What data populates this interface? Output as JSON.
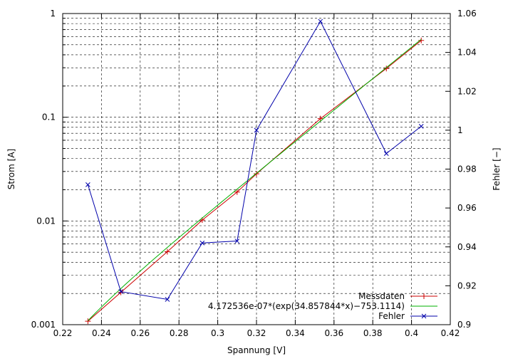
{
  "chart_data": {
    "type": "line",
    "title": "",
    "xlabel": "Spannung [V]",
    "ylabel": "Strom [A]",
    "y2label": "Fehler [−]",
    "xlim": [
      0.22,
      0.42
    ],
    "ylim": [
      0.001,
      1
    ],
    "y2lim": [
      0.9,
      1.06
    ],
    "yscale": "log",
    "grid": true,
    "legend_position": "bottom-right",
    "x_ticks": [
      "0.22",
      "0.24",
      "0.26",
      "0.28",
      "0.3",
      "0.32",
      "0.34",
      "0.36",
      "0.38",
      "0.4",
      "0.42"
    ],
    "y_ticks": [
      "0.001",
      "0.01",
      "0.1",
      "1"
    ],
    "y2_ticks": [
      "0.9",
      "0.92",
      "0.94",
      "0.96",
      "0.98",
      "1",
      "1.02",
      "1.04",
      "1.06"
    ],
    "series": [
      {
        "name": "Messdaten",
        "color": "#cc0000",
        "marker": "+",
        "axis": "left",
        "x": [
          0.233,
          0.25,
          0.274,
          0.292,
          0.31,
          0.32,
          0.353,
          0.387,
          0.405
        ],
        "y": [
          0.00108,
          0.00205,
          0.00505,
          0.0102,
          0.019,
          0.0285,
          0.097,
          0.295,
          0.55
        ]
      },
      {
        "name": "4.172536e-07*(exp(34.857844*x)−753.1114)",
        "color": "#00b000",
        "marker": "none",
        "axis": "left",
        "fit": {
          "a": 4.172536e-07,
          "b": 34.857844,
          "c": 753.1114
        }
      },
      {
        "name": "Fehler",
        "color": "#0000aa",
        "marker": "x",
        "axis": "right",
        "x": [
          0.233,
          0.25,
          0.274,
          0.292,
          0.31,
          0.32,
          0.353,
          0.387,
          0.405
        ],
        "y": [
          0.972,
          0.917,
          0.913,
          0.942,
          0.943,
          1.0,
          1.056,
          0.988,
          1.002
        ]
      }
    ]
  }
}
